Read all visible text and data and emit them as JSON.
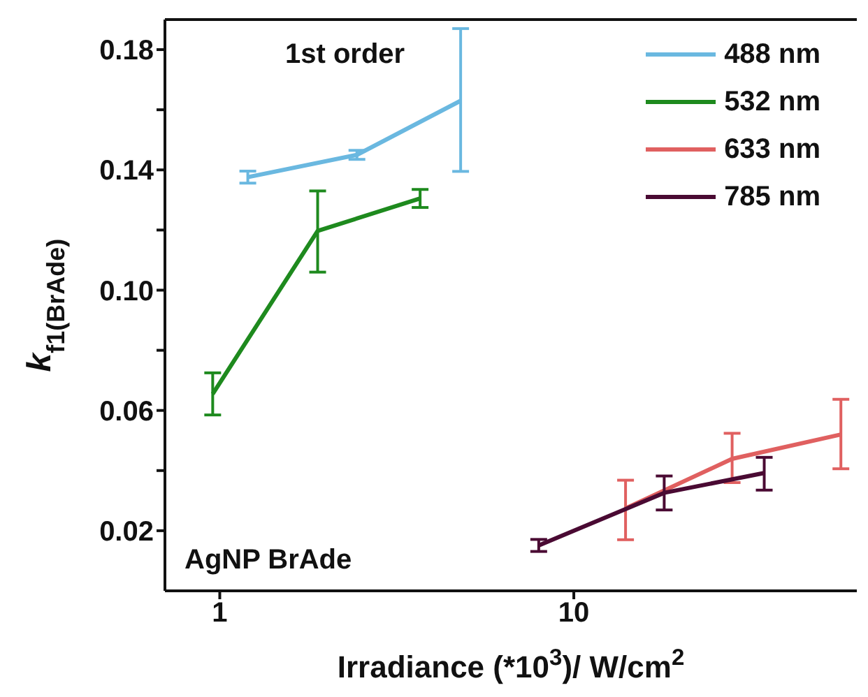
{
  "chart_data": {
    "type": "line",
    "xlabel": "Irradiance (*10$^{3}$)/ W/cm$^{2}$",
    "ylabel": "k$_{f1(BrAde)}$",
    "annotations": [
      "1st order",
      "AgNP BrAde"
    ],
    "log": "x",
    "xlim": [
      0.7,
      63
    ],
    "xticks": [
      1,
      10
    ],
    "ylim": [
      0,
      0.19
    ],
    "yticks": [
      0.02,
      {
        "value": 0.04,
        "label": null
      },
      0.06,
      {
        "value": 0.08,
        "label": null
      },
      {
        "value": 0.1,
        "label": "0.10"
      },
      {
        "value": 0.12,
        "label": null
      },
      0.14,
      {
        "value": 0.16,
        "label": null
      },
      0.18
    ],
    "grid": false,
    "legend": "top right",
    "marker": "none",
    "line_style": "solid",
    "series": [
      {
        "name": "488 nm",
        "color": "#6ab8e0",
        "x": [
          1.2,
          2.44,
          4.79
        ],
        "values": [
          0.1376,
          0.145,
          0.163
        ],
        "errors": [
          0.002,
          0.0015,
          [
            0.1395,
            0.187
          ]
        ]
      },
      {
        "name": "532 nm",
        "color": "#1e8a1e",
        "x": [
          0.955,
          1.89,
          3.68
        ],
        "values": [
          0.0655,
          0.1197,
          0.1305
        ],
        "errors": [
          0.007,
          [
            0.106,
            0.133
          ],
          0.003
        ]
      },
      {
        "name": "633 nm",
        "color": "#e06060",
        "x": [
          14.0,
          28.0,
          56.8
        ],
        "values": [
          0.0274,
          0.0439,
          0.052
        ],
        "errors": [
          [
            0.017,
            0.0368
          ],
          [
            0.036,
            0.0524
          ],
          [
            0.0406,
            0.0637
          ]
        ]
      },
      {
        "name": "785 nm",
        "color": "#4a0a33",
        "x": [
          7.96,
          18.0,
          34.5
        ],
        "values": [
          0.0151,
          0.0326,
          0.0392
        ],
        "errors": [
          0.002,
          [
            0.0269,
            0.0382
          ],
          [
            0.0335,
            0.0444
          ]
        ]
      }
    ]
  }
}
